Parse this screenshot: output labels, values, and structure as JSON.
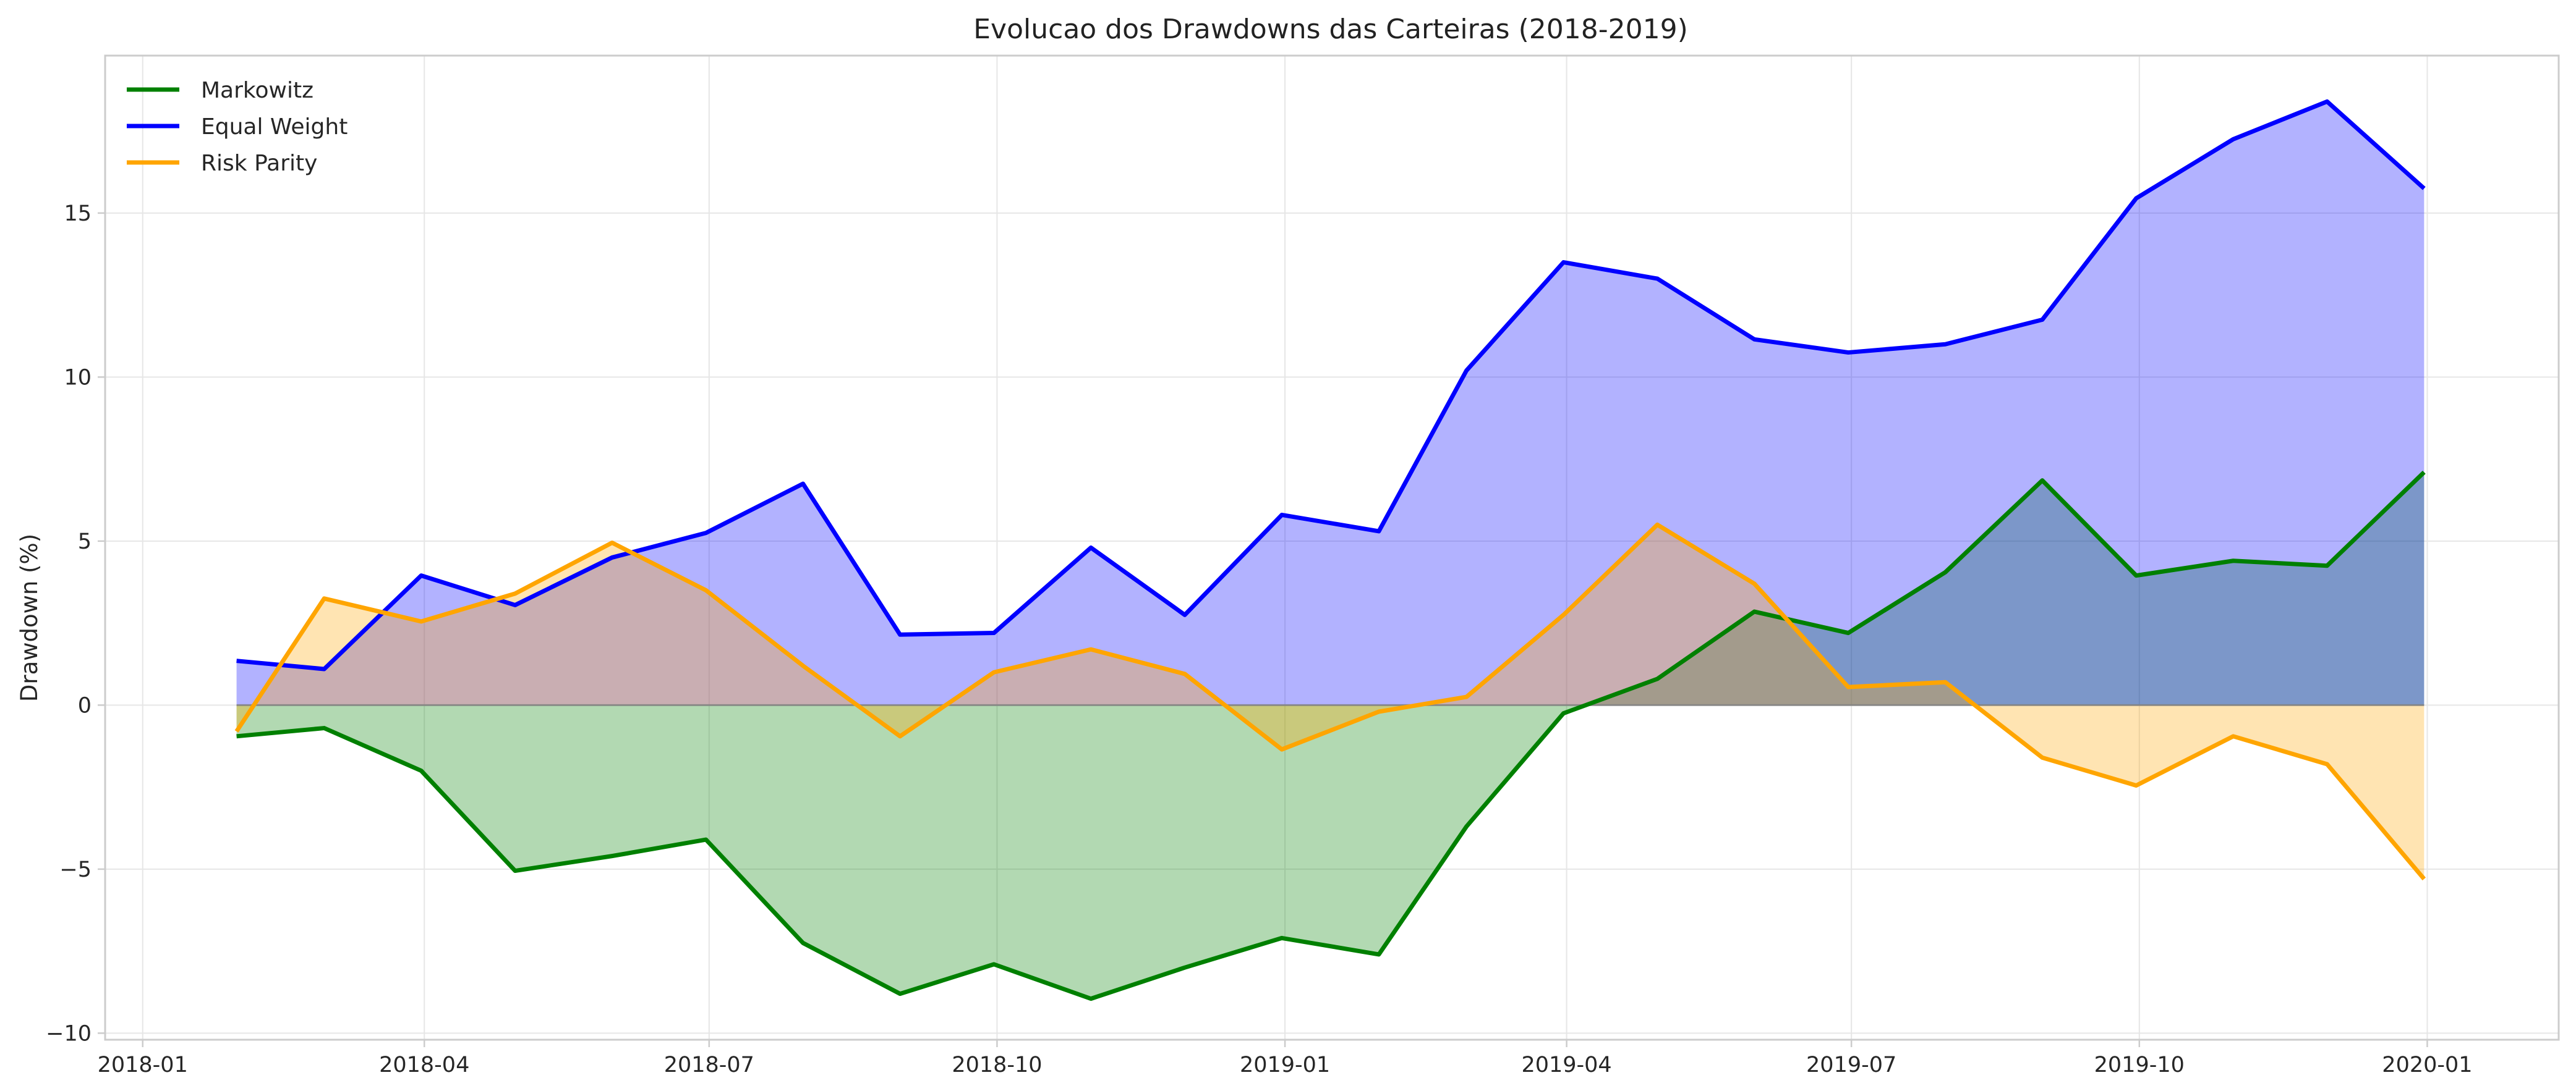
{
  "chart_data": {
    "type": "line",
    "title": "Evolucao dos Drawdowns das Carteiras (2018-2019)",
    "xlabel": "",
    "ylabel": "Drawdown (%)",
    "x_axis": {
      "type": "date",
      "range": [
        "2017-12-20",
        "2020-02-12"
      ]
    },
    "xticks": [
      "2018-01",
      "2018-04",
      "2018-07",
      "2018-10",
      "2019-01",
      "2019-04",
      "2019-07",
      "2019-10",
      "2020-01"
    ],
    "yticks": [
      -10,
      -5,
      0,
      5,
      10,
      15
    ],
    "ylim": [
      -10.2,
      19.8
    ],
    "grid": true,
    "legend_position": "upper-left",
    "area_fill_to_zero": true,
    "x": [
      "2018-01-31",
      "2018-02-28",
      "2018-03-31",
      "2018-04-30",
      "2018-05-31",
      "2018-06-30",
      "2018-07-31",
      "2018-08-31",
      "2018-09-30",
      "2018-10-31",
      "2018-11-30",
      "2018-12-31",
      "2019-01-31",
      "2019-02-28",
      "2019-03-31",
      "2019-04-30",
      "2019-05-31",
      "2019-06-30",
      "2019-07-31",
      "2019-08-31",
      "2019-09-30",
      "2019-10-31",
      "2019-11-30",
      "2019-12-31"
    ],
    "series": [
      {
        "name": "Markowitz",
        "color": "#008000",
        "values": [
          -0.95,
          -0.7,
          -2.0,
          -5.05,
          -4.6,
          -4.1,
          -7.25,
          -8.8,
          -7.9,
          -8.95,
          -8.0,
          -7.1,
          -7.6,
          -3.7,
          -0.25,
          0.8,
          2.85,
          2.2,
          4.05,
          6.85,
          3.95,
          4.4,
          4.25,
          7.1
        ]
      },
      {
        "name": "Equal Weight",
        "color": "#0000ff",
        "values": [
          1.35,
          1.1,
          3.95,
          3.05,
          4.5,
          5.25,
          6.75,
          2.15,
          2.2,
          4.8,
          2.75,
          5.8,
          5.3,
          10.2,
          13.5,
          13.0,
          11.15,
          10.75,
          11.0,
          11.75,
          15.45,
          17.25,
          18.4,
          15.75
        ]
      },
      {
        "name": "Risk Parity",
        "color": "#ffa500",
        "values": [
          -0.8,
          3.25,
          2.55,
          3.4,
          4.95,
          3.5,
          1.2,
          -0.95,
          1.0,
          1.7,
          0.95,
          -1.35,
          -0.2,
          0.25,
          2.75,
          5.5,
          3.7,
          0.55,
          0.7,
          -1.6,
          -2.45,
          -0.95,
          -1.8,
          -5.3
        ]
      }
    ]
  }
}
